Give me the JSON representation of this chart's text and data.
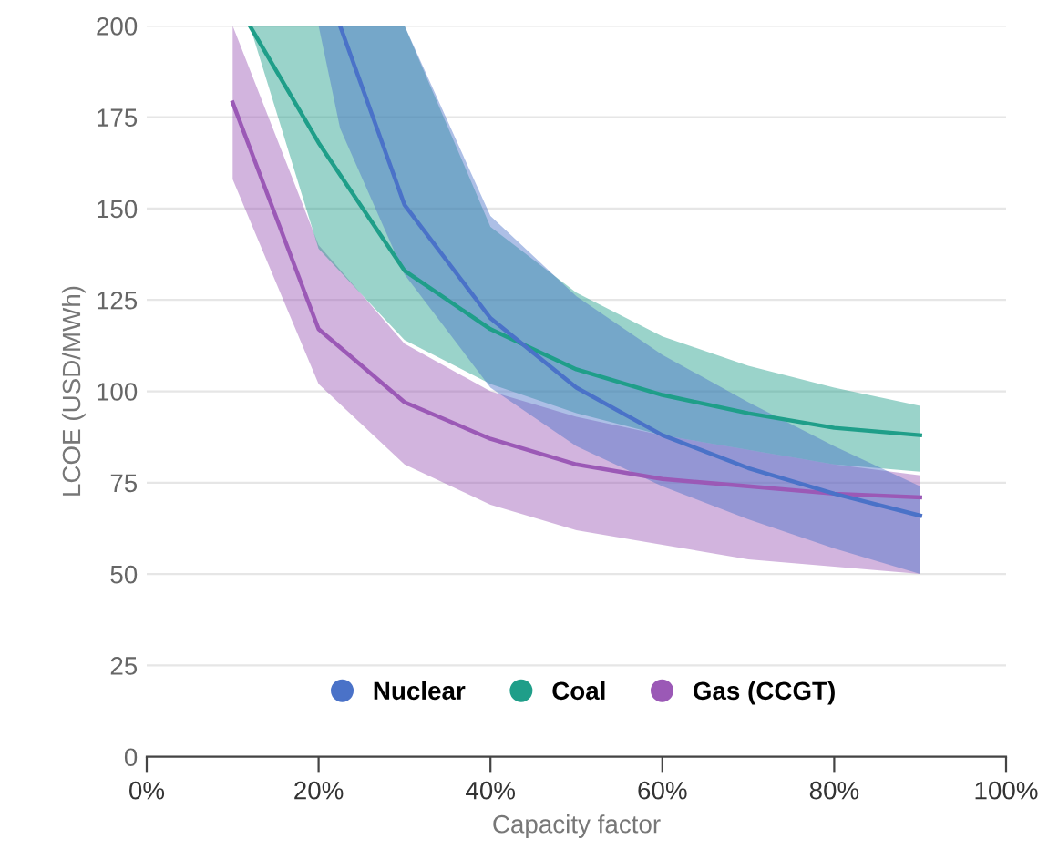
{
  "chart_data": {
    "type": "line",
    "xlabel": "Capacity factor",
    "ylabel": "LCOE (USD/MWh)",
    "xlim": [
      0,
      100
    ],
    "xticks": [
      {
        "value": 0,
        "label": "0%"
      },
      {
        "value": 20,
        "label": "20%"
      },
      {
        "value": 40,
        "label": "40%"
      },
      {
        "value": 60,
        "label": "60%"
      },
      {
        "value": 80,
        "label": "80%"
      },
      {
        "value": 100,
        "label": "100%"
      }
    ],
    "ylim": [
      0,
      200
    ],
    "yticks": [
      0,
      25,
      50,
      75,
      100,
      125,
      150,
      175,
      200
    ],
    "grid": "y",
    "legend": "bottom",
    "marker": "none",
    "series": [
      {
        "name": "Gas (CCGT)",
        "color": "#9b59b6",
        "x": [
          10,
          20,
          30,
          40,
          50,
          60,
          70,
          80,
          90
        ],
        "values": [
          179,
          117,
          97,
          87,
          80,
          76,
          74,
          72,
          71
        ],
        "lower": [
          158,
          102,
          80,
          69,
          62,
          58,
          54,
          52,
          50
        ],
        "upper": [
          200,
          140,
          113,
          100,
          93,
          88,
          84,
          80,
          77
        ]
      },
      {
        "name": "Coal",
        "color": "#1f9e89",
        "x": [
          12,
          20,
          30,
          40,
          50,
          60,
          70,
          80,
          90
        ],
        "values": [
          200,
          168,
          133,
          117,
          106,
          99,
          94,
          90,
          88
        ],
        "lower": [
          200,
          139,
          114,
          102,
          94,
          88,
          84,
          80,
          78
        ],
        "upper": [
          200,
          200,
          200,
          145,
          127,
          115,
          107,
          101,
          96
        ]
      },
      {
        "name": "Nuclear",
        "color": "#4a72c8",
        "x": [
          20,
          22.5,
          30,
          40,
          50,
          60,
          70,
          80,
          90
        ],
        "values": [
          null,
          200,
          151,
          120,
          101,
          88,
          79,
          72,
          66
        ],
        "lower": [
          200,
          172,
          132,
          101,
          85,
          74,
          65,
          57,
          50
        ],
        "upper": [
          200,
          200,
          200,
          148,
          126,
          110,
          97,
          85,
          74
        ]
      }
    ]
  }
}
